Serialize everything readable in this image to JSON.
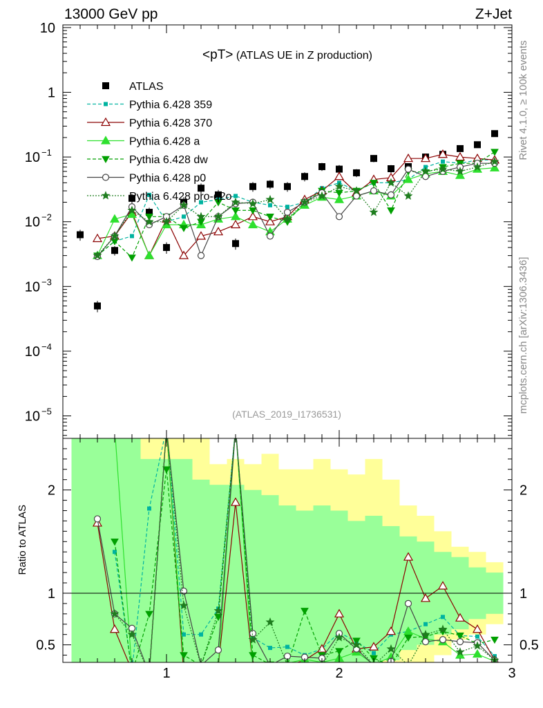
{
  "header": {
    "left": "13000 GeV pp",
    "right": "Z+Jet"
  },
  "side_labels": {
    "rivet": "Rivet 4.1.0, ≥ 100k events",
    "mcplots": "mcplots.cern.ch [arXiv:1306.3436]"
  },
  "chart_data": {
    "type": "scatter",
    "title_main": "<pT>",
    "title_sub": " (ATLAS UE in Z production)",
    "watermark": "(ATLAS_2019_I1736531)",
    "ratio_ylabel": "Ratio to ATLAS",
    "xlim": [
      0.4,
      3.0
    ],
    "ylim_main": [
      4.5e-06,
      11
    ],
    "ylim_ratio": [
      0.33,
      2.5
    ],
    "x_ticks": [
      {
        "v": 1,
        "label": "1"
      },
      {
        "v": 2,
        "label": "2"
      },
      {
        "v": 3,
        "label": "3"
      }
    ],
    "y_ticks_main": [
      {
        "exp": 1,
        "label": "10"
      },
      {
        "exp": 0,
        "label": "1"
      },
      {
        "exp": -1,
        "label": "10",
        "sup": "−1"
      },
      {
        "exp": -2,
        "label": "10",
        "sup": "−2"
      },
      {
        "exp": -3,
        "label": "10",
        "sup": "−3"
      },
      {
        "exp": -4,
        "label": "10",
        "sup": "−4"
      },
      {
        "exp": -5,
        "label": "10",
        "sup": "−5"
      }
    ],
    "y_ticks_ratio": [
      {
        "v": 0.5,
        "label": "0.5"
      },
      {
        "v": 1,
        "label": "1"
      },
      {
        "v": 2,
        "label": "2"
      }
    ],
    "x": [
      0.5,
      0.6,
      0.7,
      0.8,
      0.9,
      1.0,
      1.1,
      1.2,
      1.3,
      1.4,
      1.5,
      1.6,
      1.7,
      1.8,
      1.9,
      2.0,
      2.1,
      2.2,
      2.3,
      2.4,
      2.5,
      2.6,
      2.7,
      2.8,
      2.9
    ],
    "band_outer": [
      0.01,
      0.01,
      0.01,
      0.2,
      2.8,
      2.8,
      2.8,
      2.8,
      2.25,
      2.3,
      2.25,
      2.35,
      2.2,
      2.2,
      2.3,
      2.2,
      2.15,
      2.3,
      2.1,
      1.85,
      1.75,
      1.6,
      1.45,
      1.4,
      1.3
    ],
    "band_inner": [
      2.8,
      2.8,
      2.8,
      2.5,
      2.3,
      2.3,
      2.3,
      2.1,
      2.05,
      2.05,
      2.0,
      1.95,
      1.85,
      1.8,
      1.85,
      1.8,
      1.7,
      1.75,
      1.65,
      1.55,
      1.5,
      1.4,
      1.35,
      1.25,
      1.2
    ],
    "data_errors": [
      0.0012,
      0.0001,
      0.0006,
      0.004,
      0.0025,
      0.0008,
      0.004,
      0.006,
      0.005,
      0.0009,
      0.006,
      0.006,
      0.006,
      0.008,
      0.01,
      0.01,
      0.008,
      0.012,
      0.009,
      0.009,
      0.01,
      0.012,
      0.014,
      0.016,
      0.02
    ],
    "series": [
      {
        "name": "ATLAS",
        "marker": "square",
        "color": "#000000",
        "dash": "",
        "is_data": true,
        "values": [
          0.0063,
          0.0005,
          0.0036,
          0.023,
          0.014,
          0.004,
          0.02,
          0.033,
          0.026,
          0.0046,
          0.035,
          0.038,
          0.035,
          0.05,
          0.071,
          0.065,
          0.057,
          0.095,
          0.066,
          0.071,
          0.1,
          0.11,
          0.135,
          0.155,
          0.23
        ],
        "ratio": []
      },
      {
        "name": "Pythia 6.428 359",
        "marker": "smallsquare",
        "color": "#00b3a0",
        "dash": "5,3",
        "is_data": false,
        "values": [
          null,
          0.003,
          0.005,
          0.006,
          0.026,
          0.01,
          0.012,
          0.02,
          0.022,
          0.025,
          0.02,
          0.018,
          0.017,
          0.02,
          0.033,
          0.04,
          0.03,
          0.04,
          0.04,
          0.045,
          0.07,
          0.085,
          0.08,
          0.09,
          0.09
        ],
        "ratio": [
          null,
          null,
          1.4,
          0.25,
          1.82,
          2.6,
          0.6,
          0.6,
          0.85,
          2.6,
          0.57,
          0.47,
          0.48,
          0.4,
          0.46,
          0.62,
          0.53,
          0.42,
          0.6,
          0.63,
          0.7,
          0.77,
          0.59,
          0.58,
          0.39
        ]
      },
      {
        "name": "Pythia 6.428 370",
        "marker": "triangle-open",
        "color": "#8b0000",
        "dash": "",
        "is_data": false,
        "values": [
          null,
          0.0055,
          0.006,
          0.014,
          0.003,
          0.011,
          0.003,
          0.006,
          0.007,
          0.009,
          0.012,
          0.01,
          0.012,
          0.022,
          0.03,
          0.05,
          0.028,
          0.045,
          0.048,
          0.095,
          0.095,
          0.11,
          0.1,
          0.095,
          0.09
        ],
        "ratio": [
          null,
          1.68,
          0.65,
          0.25,
          0.22,
          2.6,
          0.22,
          0.3,
          0.3,
          1.88,
          0.3,
          0.3,
          0.3,
          0.35,
          0.46,
          0.8,
          0.46,
          0.48,
          0.63,
          1.35,
          0.95,
          1.07,
          0.76,
          0.65,
          0.35
        ]
      },
      {
        "name": "Pythia 6.428 a",
        "marker": "triangle",
        "color": "#2ee02e",
        "dash": "",
        "is_data": false,
        "values": [
          null,
          0.003,
          0.011,
          0.013,
          0.003,
          0.009,
          0.009,
          0.009,
          0.011,
          0.012,
          0.009,
          0.007,
          0.011,
          0.018,
          0.024,
          0.022,
          0.025,
          0.03,
          0.025,
          0.045,
          0.055,
          0.06,
          0.052,
          0.065,
          0.068
        ],
        "ratio": [
          null,
          null,
          2.6,
          0.25,
          0.22,
          2.6,
          0.3,
          0.3,
          0.3,
          2.6,
          0.27,
          0.22,
          0.32,
          0.36,
          0.33,
          0.37,
          0.43,
          0.31,
          0.38,
          0.63,
          0.56,
          0.53,
          0.4,
          0.41,
          0.34
        ]
      },
      {
        "name": "Pythia 6.428 dw",
        "marker": "triangle-down",
        "color": "#00a000",
        "dash": "5,3",
        "is_data": false,
        "values": [
          null,
          0.003,
          0.005,
          0.0028,
          0.012,
          0.012,
          0.008,
          0.01,
          0.02,
          0.015,
          0.015,
          0.012,
          0.01,
          0.02,
          0.03,
          0.028,
          0.03,
          0.04,
          0.015,
          0.06,
          0.058,
          0.07,
          0.08,
          0.08,
          0.12
        ],
        "ratio": [
          null,
          null,
          1.5,
          0.22,
          0.8,
          2.2,
          0.4,
          0.3,
          0.77,
          2.6,
          0.4,
          0.31,
          0.3,
          0.83,
          0.4,
          0.44,
          0.54,
          0.37,
          0.3,
          0.57,
          0.58,
          0.63,
          0.59,
          0.51,
          0.55
        ]
      },
      {
        "name": "Pythia 6.428 p0",
        "marker": "circle-open",
        "color": "#444444",
        "dash": "",
        "is_data": false,
        "values": [
          null,
          0.0029,
          0.006,
          0.017,
          0.009,
          0.012,
          0.018,
          0.003,
          0.012,
          0.019,
          0.02,
          0.006,
          0.014,
          0.02,
          0.028,
          0.012,
          0.025,
          0.03,
          0.026,
          0.065,
          0.05,
          0.06,
          0.07,
          0.08,
          0.08
        ],
        "ratio": [
          null,
          1.72,
          0.8,
          0.66,
          0.22,
          2.6,
          1.02,
          0.3,
          0.45,
          2.6,
          0.61,
          0.3,
          0.39,
          0.38,
          0.37,
          0.61,
          0.46,
          0.3,
          0.34,
          0.9,
          0.53,
          0.55,
          0.53,
          0.52,
          0.35
        ]
      },
      {
        "name": "Pythia 6.428 pro-q2o",
        "marker": "star",
        "color": "#1e7d1e",
        "dash": "2,2",
        "is_data": false,
        "values": [
          null,
          0.003,
          0.006,
          0.015,
          0.01,
          0.01,
          0.018,
          0.012,
          0.012,
          0.02,
          0.019,
          0.022,
          0.011,
          0.02,
          0.025,
          0.035,
          0.03,
          0.014,
          0.04,
          0.025,
          0.06,
          0.065,
          0.06,
          0.07,
          0.085
        ],
        "ratio": [
          null,
          null,
          0.8,
          0.6,
          0.22,
          2.6,
          0.88,
          0.3,
          0.83,
          2.6,
          0.55,
          0.72,
          0.3,
          0.3,
          0.3,
          0.57,
          0.5,
          0.3,
          0.46,
          0.3,
          0.6,
          0.65,
          0.43,
          0.49,
          0.35
        ]
      }
    ]
  }
}
